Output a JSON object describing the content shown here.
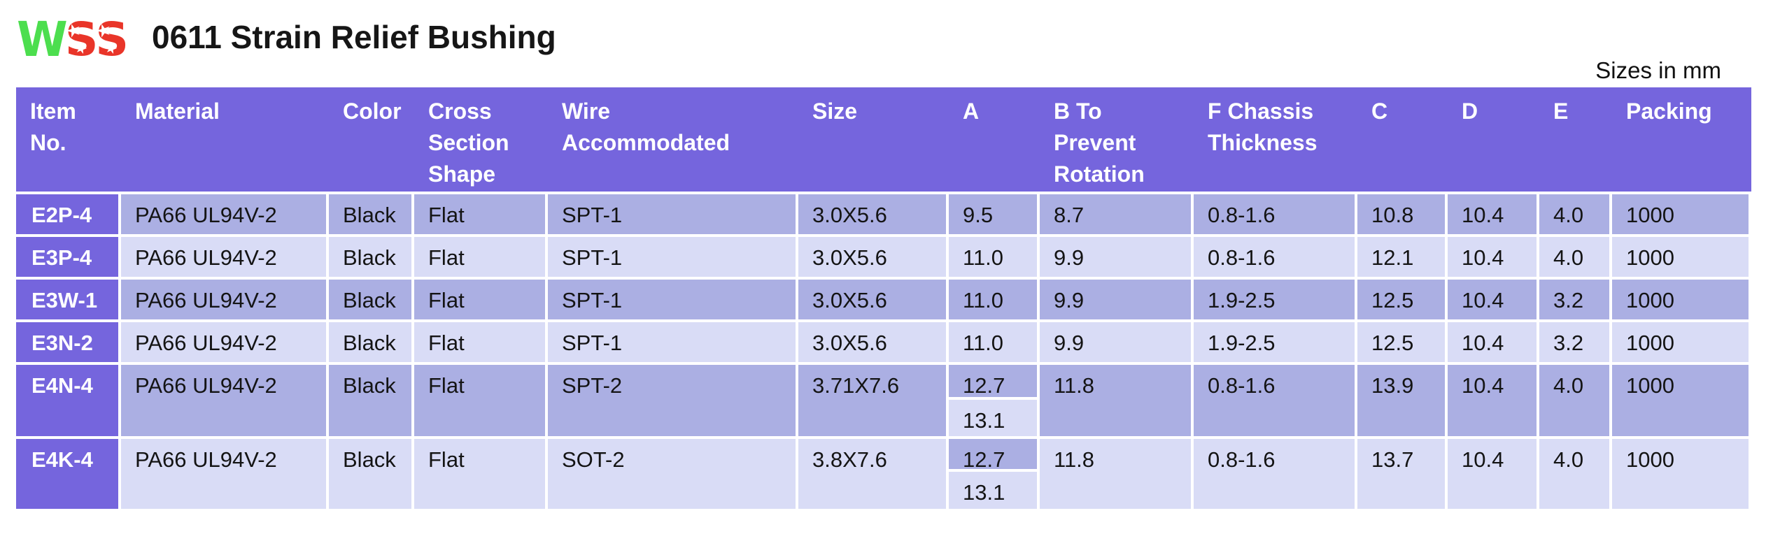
{
  "page": {
    "title": "0611 Strain Relief Bushing",
    "units_note": "Sizes in mm"
  },
  "logo": {
    "w": "W",
    "s1": "S",
    "s2": "S",
    "star": "★",
    "w_color": "#4CDE4E",
    "s_color": "#E93529"
  },
  "colors": {
    "header_bg": "#7565DD",
    "item_column_bg": "#7565DD",
    "row_dark": "#ABAFE3",
    "row_light": "#D9DCF6",
    "separator": "#FFFFFF",
    "header_text": "#FFFFFF",
    "data_text": "#141414"
  },
  "table": {
    "columns": [
      {
        "id": "item",
        "label": "Item No.",
        "lines": [
          "Item",
          "No."
        ]
      },
      {
        "id": "material",
        "label": "Material",
        "lines": [
          "Material"
        ]
      },
      {
        "id": "color",
        "label": "Color",
        "lines": [
          "Color"
        ]
      },
      {
        "id": "shape",
        "label": "Cross Section Shape",
        "lines": [
          "Cross",
          "Section",
          "Shape"
        ]
      },
      {
        "id": "wire",
        "label": "Wire Accommodated",
        "lines": [
          "Wire",
          "Accommodated"
        ]
      },
      {
        "id": "size",
        "label": "Size",
        "lines": [
          "Size"
        ]
      },
      {
        "id": "a",
        "label": "A",
        "lines": [
          "A"
        ]
      },
      {
        "id": "b",
        "label": "B To Prevent Rotation",
        "lines": [
          "B To",
          "Prevent",
          "Rotation"
        ]
      },
      {
        "id": "f",
        "label": "F Chassis Thickness",
        "lines": [
          "F Chassis",
          "Thickness"
        ]
      },
      {
        "id": "c",
        "label": "C",
        "lines": [
          "C"
        ]
      },
      {
        "id": "d",
        "label": "D",
        "lines": [
          "D"
        ]
      },
      {
        "id": "e",
        "label": "E",
        "lines": [
          "E"
        ]
      },
      {
        "id": "packing",
        "label": "Packing",
        "lines": [
          "Packing"
        ]
      }
    ],
    "rows": [
      {
        "item": "E2P-4",
        "material": "PA66 UL94V-2",
        "color": "Black",
        "shape": "Flat",
        "wire": "SPT-1",
        "size": "3.0X5.6",
        "a": "9.5",
        "b": "8.7",
        "f": "0.8-1.6",
        "c": "10.8",
        "d": "10.4",
        "e": "4.0",
        "packing": "1000"
      },
      {
        "item": "E3P-4",
        "material": "PA66 UL94V-2",
        "color": "Black",
        "shape": "Flat",
        "wire": "SPT-1",
        "size": "3.0X5.6",
        "a": "11.0",
        "b": "9.9",
        "f": "0.8-1.6",
        "c": "12.1",
        "d": "10.4",
        "e": "4.0",
        "packing": "1000"
      },
      {
        "item": "E3W-1",
        "material": "PA66 UL94V-2",
        "color": "Black",
        "shape": "Flat",
        "wire": "SPT-1",
        "size": "3.0X5.6",
        "a": "11.0",
        "b": "9.9",
        "f": "1.9-2.5",
        "c": "12.5",
        "d": "10.4",
        "e": "3.2",
        "packing": "1000"
      },
      {
        "item": "E3N-2",
        "material": "PA66 UL94V-2",
        "color": "Black",
        "shape": "Flat",
        "wire": "SPT-1",
        "size": "3.0X5.6",
        "a": "11.0",
        "b": "9.9",
        "f": "1.9-2.5",
        "c": "12.5",
        "d": "10.4",
        "e": "3.2",
        "packing": "1000"
      },
      {
        "item": "E4N-4",
        "material": "PA66 UL94V-2",
        "color": "Black",
        "shape": "Flat",
        "wire": "SPT-2",
        "size": "3.71X7.6",
        "a_top": "12.7",
        "a_bottom": "13.1",
        "b": "11.8",
        "f": "0.8-1.6",
        "c": "13.9",
        "d": "10.4",
        "e": "4.0",
        "packing": "1000"
      },
      {
        "item": "E4K-4",
        "material": "PA66 UL94V-2",
        "color": "Black",
        "shape": "Flat",
        "wire": "SOT-2",
        "size": "3.8X7.6",
        "a_top": "12.7",
        "a_bottom": "13.1",
        "b": "11.8",
        "f": "0.8-1.6",
        "c": "13.7",
        "d": "10.4",
        "e": "4.0",
        "packing": "1000"
      }
    ]
  }
}
